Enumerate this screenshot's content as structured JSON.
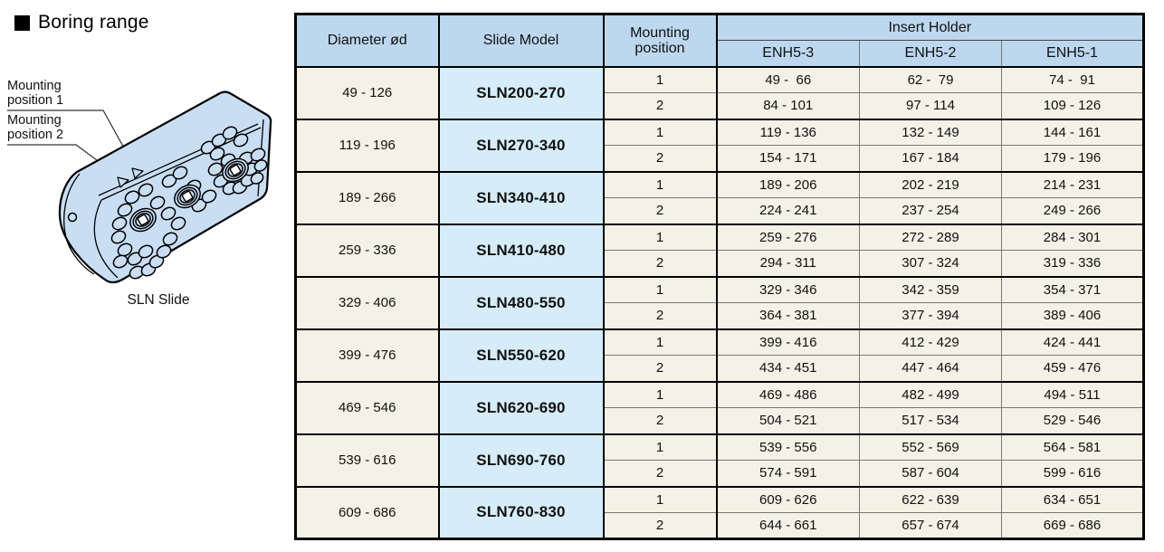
{
  "page": {
    "title": "Boring range",
    "caption": "SLN Slide",
    "mounting_label_1": {
      "line1": "Mounting",
      "line2": "position 1"
    },
    "mounting_label_2": {
      "line1": "Mounting",
      "line2": "position 2"
    }
  },
  "table": {
    "headers": {
      "diameter": "Diameter ød",
      "slide_model": "Slide Model",
      "mounting_line1": "Mounting",
      "mounting_line2": "position",
      "insert_holder": "Insert Holder",
      "insert_columns": [
        "ENH5-3",
        "ENH5-2",
        "ENH5-1"
      ]
    },
    "groups": [
      {
        "diameter": "49 - 126",
        "model": "SLN200-270",
        "rows": [
          {
            "position": "1",
            "ranges": [
              "49 -  66",
              "62 -  79",
              "74 -  91"
            ]
          },
          {
            "position": "2",
            "ranges": [
              "84 - 101",
              "97 - 114",
              "109 - 126"
            ]
          }
        ]
      },
      {
        "diameter": "119 - 196",
        "model": "SLN270-340",
        "rows": [
          {
            "position": "1",
            "ranges": [
              "119 - 136",
              "132 - 149",
              "144 - 161"
            ]
          },
          {
            "position": "2",
            "ranges": [
              "154 - 171",
              "167 - 184",
              "179 - 196"
            ]
          }
        ]
      },
      {
        "diameter": "189 - 266",
        "model": "SLN340-410",
        "rows": [
          {
            "position": "1",
            "ranges": [
              "189 - 206",
              "202 - 219",
              "214 - 231"
            ]
          },
          {
            "position": "2",
            "ranges": [
              "224 - 241",
              "237 - 254",
              "249 - 266"
            ]
          }
        ]
      },
      {
        "diameter": "259 - 336",
        "model": "SLN410-480",
        "rows": [
          {
            "position": "1",
            "ranges": [
              "259 - 276",
              "272 - 289",
              "284 - 301"
            ]
          },
          {
            "position": "2",
            "ranges": [
              "294 - 311",
              "307 - 324",
              "319 - 336"
            ]
          }
        ]
      },
      {
        "diameter": "329 - 406",
        "model": "SLN480-550",
        "rows": [
          {
            "position": "1",
            "ranges": [
              "329 - 346",
              "342 - 359",
              "354 - 371"
            ]
          },
          {
            "position": "2",
            "ranges": [
              "364 - 381",
              "377 - 394",
              "389 - 406"
            ]
          }
        ]
      },
      {
        "diameter": "399 - 476",
        "model": "SLN550-620",
        "rows": [
          {
            "position": "1",
            "ranges": [
              "399 - 416",
              "412 - 429",
              "424 - 441"
            ]
          },
          {
            "position": "2",
            "ranges": [
              "434 - 451",
              "447 - 464",
              "459 - 476"
            ]
          }
        ]
      },
      {
        "diameter": "469 - 546",
        "model": "SLN620-690",
        "rows": [
          {
            "position": "1",
            "ranges": [
              "469 - 486",
              "482 - 499",
              "494 - 511"
            ]
          },
          {
            "position": "2",
            "ranges": [
              "504 - 521",
              "517 - 534",
              "529 - 546"
            ]
          }
        ]
      },
      {
        "diameter": "539 - 616",
        "model": "SLN690-760",
        "rows": [
          {
            "position": "1",
            "ranges": [
              "539 - 556",
              "552 - 569",
              "564 - 581"
            ]
          },
          {
            "position": "2",
            "ranges": [
              "574 - 591",
              "587 - 604",
              "599 - 616"
            ]
          }
        ]
      },
      {
        "diameter": "609 - 686",
        "model": "SLN760-830",
        "rows": [
          {
            "position": "1",
            "ranges": [
              "609 - 626",
              "622 - 639",
              "634 - 651"
            ]
          },
          {
            "position": "2",
            "ranges": [
              "644 - 661",
              "657 - 674",
              "669 - 686"
            ]
          }
        ]
      }
    ]
  },
  "colors": {
    "header_bg": "#bdd7ee",
    "model_bg": "#d6edf9",
    "cell_bg": "#f4f1e6",
    "slide_fill": "#c9def3"
  }
}
